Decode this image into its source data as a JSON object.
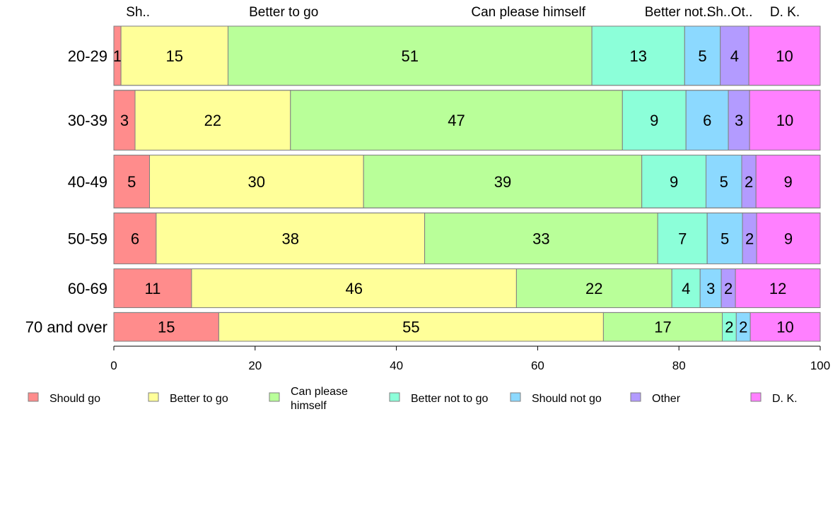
{
  "chart_data": {
    "type": "bar",
    "orientation": "horizontal",
    "stacked": true,
    "categories": [
      "20-29",
      "30-39",
      "40-49",
      "50-59",
      "60-69",
      "70 and over"
    ],
    "series": [
      {
        "name": "Should go",
        "color": "#ff8c8c",
        "values": [
          1,
          3,
          5,
          6,
          11,
          15
        ]
      },
      {
        "name": "Better to go",
        "color": "#ffff99",
        "values": [
          15,
          22,
          30,
          38,
          46,
          55
        ]
      },
      {
        "name": "Can please himself",
        "color": "#b9ff99",
        "values": [
          51,
          47,
          39,
          33,
          22,
          17
        ]
      },
      {
        "name": "Better not to go",
        "color": "#8cffd9",
        "values": [
          13,
          9,
          9,
          7,
          4,
          2
        ]
      },
      {
        "name": "Should not go",
        "color": "#8cd9ff",
        "values": [
          5,
          6,
          5,
          5,
          3,
          2
        ]
      },
      {
        "name": "Other",
        "color": "#b39bff",
        "values": [
          4,
          3,
          2,
          2,
          2,
          0
        ]
      },
      {
        "name": "D. K.",
        "color": "#ff80ff",
        "values": [
          10,
          10,
          9,
          9,
          12,
          10
        ]
      }
    ],
    "column_labels": [
      "Sh..",
      "Better to go",
      "Can please himself",
      "Better not..",
      "Sh..",
      "Ot..",
      "D. K."
    ],
    "legend_labels": [
      [
        "Should go"
      ],
      [
        "Better to go"
      ],
      [
        "Can please",
        "himself"
      ],
      [
        "Better not to go"
      ],
      [
        "Should not go"
      ],
      [
        "Other"
      ],
      [
        "D. K."
      ]
    ],
    "xlim": [
      0,
      100
    ],
    "xticks": [
      0,
      20,
      40,
      60,
      80,
      100
    ],
    "row_weights": [
      93,
      94,
      83,
      80,
      61,
      45
    ],
    "grid": false,
    "legend_position": "bottom"
  }
}
